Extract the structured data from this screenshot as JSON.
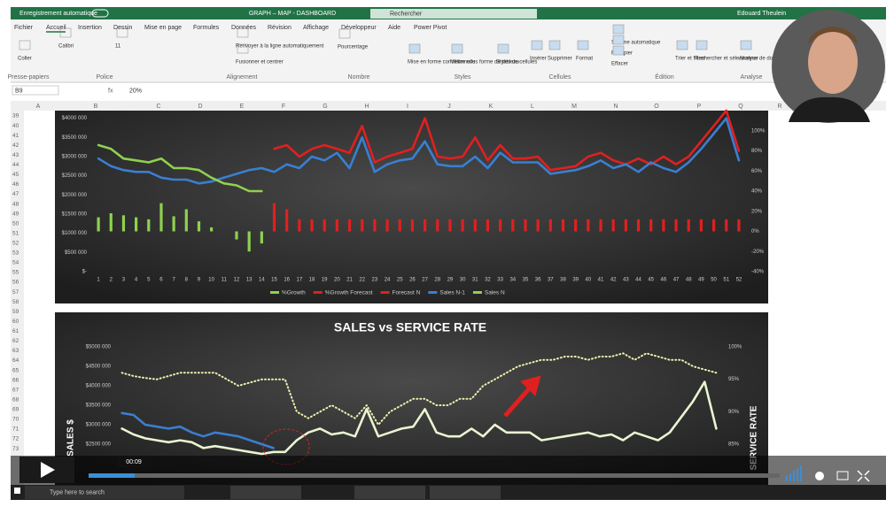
{
  "titlebar": {
    "autosave": "Enregistrement automatique",
    "file": "GRAPH – MAP - DASHBOARD",
    "search": "Rechercher",
    "user": "Edouard Theulein"
  },
  "tabs": [
    "Fichier",
    "Accueil",
    "Insertion",
    "Dessin",
    "Mise en page",
    "Formules",
    "Données",
    "Révision",
    "Affichage",
    "Développeur",
    "Aide",
    "Power Pivot"
  ],
  "ribbon": {
    "groups": [
      "Presse-papiers",
      "Police",
      "Alignement",
      "Nombre",
      "Styles",
      "Cellules",
      "Édition",
      "Analyse"
    ],
    "buttons": [
      "Coller",
      "Calibri",
      "11",
      "Renvoyer à la ligne automatiquement",
      "Fusionner et centrer",
      "Pourcentage",
      "Mise en forme conditionnelle",
      "Mettre sous forme de tableau",
      "Styles de cellules",
      "Insérer",
      "Supprimer",
      "Format",
      "Somme automatique",
      "Recopier",
      "Effacer",
      "Trier et filtrer",
      "Rechercher et sélectionner",
      "Analyse de données"
    ]
  },
  "formula_bar": {
    "name_box": "B9",
    "content": "20%"
  },
  "columns": [
    "A",
    "B",
    "C",
    "D",
    "E",
    "F",
    "G",
    "H",
    "I",
    "J",
    "K",
    "L",
    "M",
    "N",
    "O",
    "P",
    "Q",
    "R"
  ],
  "rows": [
    39,
    40,
    41,
    42,
    43,
    44,
    45,
    46,
    47,
    48,
    49,
    50,
    51,
    52,
    53,
    54,
    55,
    56,
    57,
    58,
    59,
    60,
    61,
    62,
    63,
    64,
    65,
    66,
    67,
    68,
    69,
    70,
    71,
    72,
    73
  ],
  "chart_data": [
    {
      "type": "combo",
      "categories": [
        1,
        2,
        3,
        4,
        5,
        6,
        7,
        8,
        9,
        10,
        11,
        12,
        13,
        14,
        15,
        16,
        17,
        18,
        19,
        20,
        21,
        22,
        23,
        24,
        25,
        26,
        27,
        28,
        29,
        30,
        31,
        32,
        33,
        34,
        35,
        36,
        37,
        38,
        39,
        40,
        41,
        42,
        43,
        44,
        45,
        46,
        47,
        48,
        49,
        50,
        51,
        52
      ],
      "ylim": [
        0,
        4200000
      ],
      "yticks": [
        {
          "value": 4000000,
          "label": "$4000 000"
        },
        {
          "value": 3500000,
          "label": "$3500 000"
        },
        {
          "value": 3000000,
          "label": "$3000 000"
        },
        {
          "value": 2500000,
          "label": "$2500 000"
        },
        {
          "value": 2000000,
          "label": "$2000 000"
        },
        {
          "value": 1500000,
          "label": "$1500 000"
        },
        {
          "value": 1000000,
          "label": "$1000 000"
        },
        {
          "value": 500000,
          "label": "$500 000"
        },
        {
          "value": 0,
          "label": "$-"
        }
      ],
      "y2lim": [
        -40,
        120
      ],
      "y2ticks": [
        {
          "value": 100,
          "label": "100%"
        },
        {
          "value": 80,
          "label": "80%"
        },
        {
          "value": 60,
          "label": "60%"
        },
        {
          "value": 40,
          "label": "40%"
        },
        {
          "value": 20,
          "label": "20%"
        },
        {
          "value": 0,
          "label": "0%"
        },
        {
          "value": -20,
          "label": "-20%"
        },
        {
          "value": -40,
          "label": "-40%"
        }
      ],
      "legend": "bottom",
      "series": [
        {
          "name": "%Growth",
          "type": "bar",
          "axis": "y2",
          "color": "#8fd14f",
          "values": [
            14,
            18,
            16,
            14,
            12,
            28,
            15,
            22,
            10,
            4,
            0,
            -8,
            -20,
            -12,
            null,
            null,
            null,
            null,
            null,
            null,
            null,
            null,
            null,
            null,
            null,
            null,
            null,
            null,
            null,
            null,
            null,
            null,
            null,
            null,
            null,
            null,
            null,
            null,
            null,
            null,
            null,
            null,
            null,
            null,
            null,
            null,
            null,
            null,
            null,
            null,
            null,
            null
          ]
        },
        {
          "name": "%Growth Forecast",
          "type": "bar",
          "axis": "y2",
          "color": "#e02020",
          "values": [
            null,
            null,
            null,
            null,
            null,
            null,
            null,
            null,
            null,
            null,
            null,
            null,
            null,
            null,
            28,
            22,
            12,
            12,
            12,
            12,
            12,
            12,
            12,
            12,
            12,
            12,
            12,
            12,
            12,
            12,
            12,
            12,
            12,
            12,
            12,
            12,
            12,
            12,
            12,
            12,
            12,
            12,
            12,
            12,
            12,
            12,
            12,
            12,
            12,
            12,
            12,
            12
          ]
        },
        {
          "name": "Forecast N",
          "type": "line",
          "color": "#e02020",
          "values": [
            null,
            null,
            null,
            null,
            null,
            null,
            null,
            null,
            null,
            null,
            null,
            null,
            null,
            null,
            3200000,
            3300000,
            3000000,
            3200000,
            3300000,
            3200000,
            3100000,
            3800000,
            2850000,
            3000000,
            3100000,
            3200000,
            4000000,
            3000000,
            2950000,
            3000000,
            3500000,
            2900000,
            3300000,
            2950000,
            2950000,
            3000000,
            2650000,
            2700000,
            2750000,
            3000000,
            3100000,
            2900000,
            2800000,
            2950000,
            2800000,
            3000000,
            2800000,
            3000000,
            3400000,
            3800000,
            4200000,
            3150000
          ]
        },
        {
          "name": "Sales N-1",
          "type": "line",
          "color": "#3a7fd0",
          "values": [
            2950000,
            2750000,
            2650000,
            2600000,
            2600000,
            2450000,
            2400000,
            2400000,
            2300000,
            2350000,
            2450000,
            2550000,
            2650000,
            2700000,
            2600000,
            2800000,
            2700000,
            3000000,
            2900000,
            3100000,
            2700000,
            3500000,
            2600000,
            2800000,
            2900000,
            2950000,
            3400000,
            2800000,
            2750000,
            2750000,
            3000000,
            2700000,
            3100000,
            2850000,
            2850000,
            2850000,
            2550000,
            2600000,
            2650000,
            2750000,
            2900000,
            2700000,
            2800000,
            2600000,
            2850000,
            2700000,
            2600000,
            2850000,
            3200000,
            3600000,
            4000000,
            2900000
          ]
        },
        {
          "name": "Sales N",
          "type": "line",
          "color": "#8fd14f",
          "values": [
            3300000,
            3200000,
            2950000,
            2900000,
            2850000,
            2950000,
            2700000,
            2700000,
            2650000,
            2450000,
            2300000,
            2250000,
            2100000,
            2100000,
            null,
            null,
            null,
            null,
            null,
            null,
            null,
            null,
            null,
            null,
            null,
            null,
            null,
            null,
            null,
            null,
            null,
            null,
            null,
            null,
            null,
            null,
            null,
            null,
            null,
            null,
            null,
            null,
            null,
            null,
            null,
            null,
            null,
            null,
            null,
            null,
            null,
            null
          ]
        }
      ]
    },
    {
      "type": "line",
      "title": "SALES vs SERVICE RATE",
      "ylabel": "SALES $",
      "y2label": "SERVICE RATE",
      "ylim": [
        1500000,
        5000000
      ],
      "yticks": [
        {
          "value": 5000000,
          "label": "$5000 000"
        },
        {
          "value": 4500000,
          "label": "$4500 000"
        },
        {
          "value": 4000000,
          "label": "$4000 000"
        },
        {
          "value": 3500000,
          "label": "$3500 000"
        },
        {
          "value": 3000000,
          "label": "$3000 000"
        },
        {
          "value": 2500000,
          "label": "$2500 000"
        }
      ],
      "y2lim": [
        79,
        100
      ],
      "y2ticks": [
        {
          "value": 100,
          "label": "100%"
        },
        {
          "value": 95,
          "label": "95%"
        },
        {
          "value": 90,
          "label": "90%"
        },
        {
          "value": 85,
          "label": "85%"
        }
      ],
      "series": [
        {
          "type": "line",
          "color": "#e8f5d0",
          "values": [
            2900000,
            2750000,
            2650000,
            2600000,
            2550000,
            2600000,
            2550000,
            2400000,
            2450000,
            2400000,
            2350000,
            2300000,
            2250000,
            2300000,
            2300000,
            2600000,
            2800000,
            2900000,
            2750000,
            2800000,
            2700000,
            3400000,
            2700000,
            2800000,
            2900000,
            2950000,
            3400000,
            2800000,
            2700000,
            2700000,
            2900000,
            2700000,
            3000000,
            2800000,
            2800000,
            2800000,
            2600000,
            2650000,
            2700000,
            2750000,
            2800000,
            2700000,
            2750000,
            2600000,
            2800000,
            2700000,
            2600000,
            2800000,
            3200000,
            3600000,
            4100000,
            2900000
          ]
        },
        {
          "type": "line",
          "color": "#3a7fd0",
          "values": [
            3300000,
            3250000,
            3000000,
            2950000,
            2900000,
            2950000,
            2800000,
            2700000,
            2800000,
            2750000,
            2700000,
            2600000,
            2500000,
            2400000,
            null,
            null,
            null,
            null,
            null,
            null,
            null,
            null,
            null,
            null,
            null,
            null,
            null,
            null,
            null,
            null,
            null,
            null,
            null,
            null,
            null,
            null,
            null,
            null,
            null,
            null,
            null,
            null,
            null,
            null,
            null,
            null,
            null,
            null,
            null,
            null,
            null,
            null
          ]
        },
        {
          "type": "line",
          "axis": "y2",
          "dash": "dotted",
          "color": "#f0f0b0",
          "values": [
            96,
            95.5,
            95.2,
            95,
            95.5,
            96,
            96,
            96,
            96,
            95,
            94,
            94.5,
            95,
            95,
            95,
            90,
            89,
            90,
            91,
            90,
            89,
            91,
            88,
            90,
            91,
            92,
            92,
            91,
            91,
            92,
            92,
            94,
            95,
            96,
            97,
            97.5,
            98,
            98,
            98.5,
            98.5,
            98,
            98.5,
            98.5,
            99,
            98,
            99,
            98.5,
            98,
            98,
            97,
            96.5,
            96
          ]
        }
      ]
    }
  ],
  "video": {
    "time": "00:09"
  },
  "taskbar": {
    "search": "Type here to search"
  }
}
